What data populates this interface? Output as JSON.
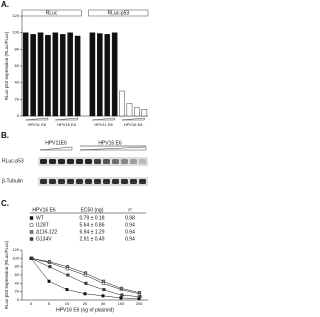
{
  "panel_labels": [
    "A.",
    "B.",
    "C."
  ],
  "chart_data": [
    {
      "type": "bar",
      "ylabel": "RLuc-p53 expression (RLuc/FLuc)",
      "group_labels": [
        "RLuc",
        "RLuc-p53"
      ],
      "x_labels": [
        "HPV11 E6",
        "HPV16 E6",
        "HPV11 E6",
        "HPV16 E6"
      ],
      "categories": [
        null,
        null,
        null,
        null,
        null,
        null,
        null,
        null,
        null,
        null,
        null,
        null,
        null,
        null,
        null,
        null
      ],
      "values": [
        100,
        98,
        100,
        97,
        100,
        98,
        100,
        96,
        100,
        99,
        98,
        100,
        30,
        15,
        10,
        8
      ],
      "colors": [
        "#111",
        "#111",
        "#111",
        "#111",
        "#111",
        "#111",
        "#111",
        "#111",
        "#111",
        "#111",
        "#111",
        "#111",
        "#fff",
        "#fff",
        "#fff",
        "#fff"
      ],
      "ylim": [
        0,
        120
      ],
      "yticks": [
        0,
        20,
        40,
        60,
        80,
        100,
        120
      ]
    },
    {
      "type": "line",
      "ylabel": "RLuc-p53 expression (RLuc/FLuc)",
      "xlabel": "HPV16 E6 (ng of plasmid)",
      "categories": [
        "0",
        "5",
        "10",
        "20",
        "40",
        "100",
        "200"
      ],
      "series": [
        {
          "name": "WT",
          "color": "#111",
          "values": [
            100,
            45,
            25,
            15,
            10,
            5,
            3
          ]
        },
        {
          "name": "I128T",
          "color": "#fff",
          "values": [
            100,
            90,
            75,
            60,
            40,
            25,
            15
          ]
        },
        {
          "name": "Δ116-122",
          "color": "#888",
          "values": [
            100,
            92,
            80,
            65,
            45,
            28,
            18
          ]
        },
        {
          "name": "G134V",
          "color": "#444",
          "values": [
            100,
            80,
            60,
            40,
            25,
            12,
            8
          ]
        }
      ],
      "ylim": [
        0,
        120
      ],
      "yticks": [
        0,
        20,
        40,
        60,
        80,
        100,
        120
      ]
    }
  ],
  "blot": {
    "lane_labels": [
      "HPV11E6",
      "HPV16 E6"
    ],
    "rows": [
      "RLuc-p53",
      "β-Tubulin"
    ]
  },
  "table": {
    "header": [
      "HPV16 E6",
      "EC50 (ng)",
      "r²"
    ],
    "rows": [
      [
        "0.79 ± 0.18",
        "0.98"
      ],
      [
        "5.64 ± 0.86",
        "0.94"
      ],
      [
        "6.94 ± 1.29",
        "0.94"
      ],
      [
        "2.91 ± 0.49",
        "0.94"
      ]
    ]
  }
}
